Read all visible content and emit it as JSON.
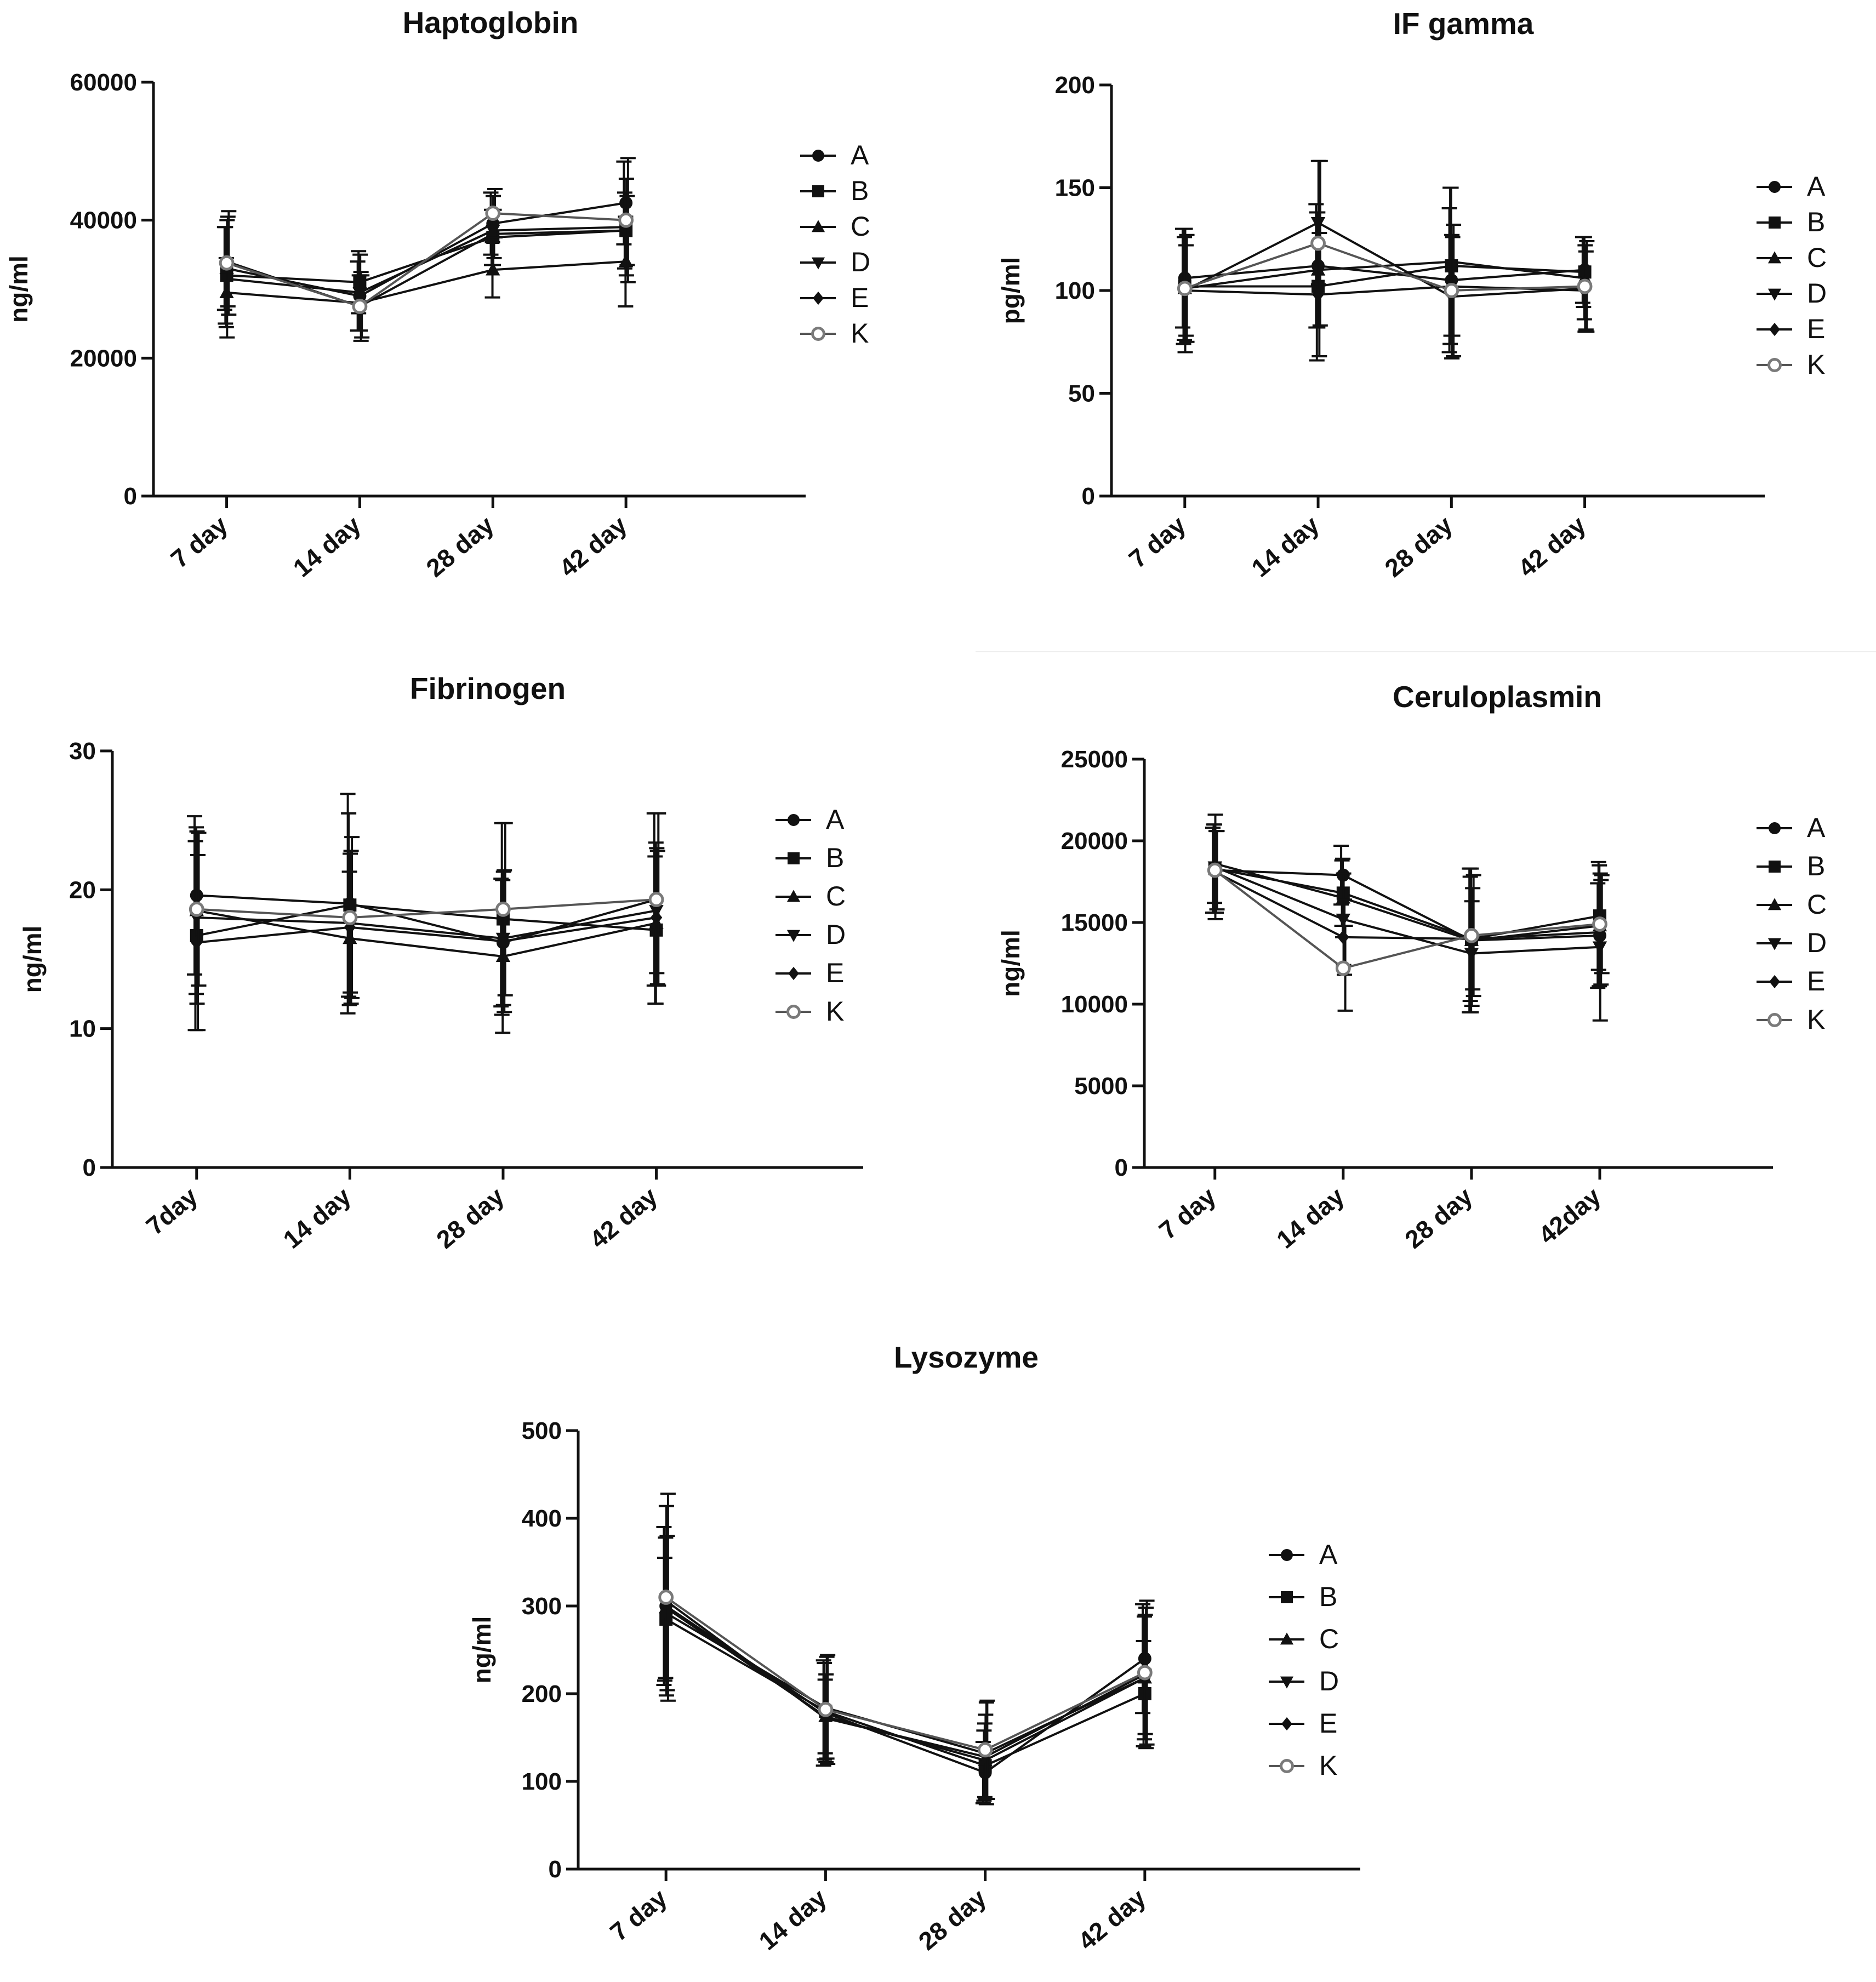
{
  "figure": {
    "description_none": ""
  },
  "chart_data": [
    {
      "type": "line",
      "title": "Haptoglobin",
      "xlabel": "",
      "ylabel": "ng/ml",
      "ylim": [
        0,
        60000
      ],
      "yticks": [
        0,
        20000,
        40000,
        60000
      ],
      "categories": [
        "7 day",
        "14 day",
        "28 day",
        "42 day"
      ],
      "series": [
        {
          "name": "A",
          "marker": "circle",
          "values": [
            33000,
            29000,
            39500,
            42500
          ],
          "errors": [
            6000,
            5000,
            4500,
            6000
          ]
        },
        {
          "name": "B",
          "marker": "square",
          "values": [
            32000,
            31000,
            37500,
            38500
          ],
          "errors": [
            7000,
            4500,
            4000,
            5500
          ]
        },
        {
          "name": "C",
          "marker": "triangle-up",
          "values": [
            29500,
            28000,
            32800,
            34000
          ],
          "errors": [
            5000,
            4000,
            4000,
            6500
          ]
        },
        {
          "name": "D",
          "marker": "triangle-down",
          "values": [
            31500,
            29500,
            38500,
            39000
          ],
          "errors": [
            8500,
            5500,
            5000,
            7000
          ]
        },
        {
          "name": "E",
          "marker": "diamond",
          "values": [
            34000,
            27500,
            38000,
            38500
          ],
          "errors": [
            6500,
            5000,
            3500,
            5000
          ]
        },
        {
          "name": "K",
          "marker": "open-circle",
          "values": [
            33800,
            27500,
            41000,
            40000
          ],
          "errors": [
            7500,
            4500,
            3500,
            9000
          ]
        }
      ]
    },
    {
      "type": "line",
      "title": "IF gamma",
      "xlabel": "",
      "ylabel": "pg/ml",
      "ylim": [
        0,
        200
      ],
      "yticks": [
        0,
        50,
        100,
        150,
        200
      ],
      "categories": [
        "7 day",
        "14 day",
        "28 day",
        "42 day"
      ],
      "series": [
        {
          "name": "A",
          "marker": "circle",
          "values": [
            106,
            112,
            105,
            110
          ],
          "errors": [
            24,
            30,
            35,
            16
          ]
        },
        {
          "name": "B",
          "marker": "square",
          "values": [
            102,
            102,
            112,
            109
          ],
          "errors": [
            28,
            36,
            38,
            17
          ]
        },
        {
          "name": "C",
          "marker": "triangle-up",
          "values": [
            101,
            110,
            114,
            106
          ],
          "errors": [
            25,
            28,
            36,
            20
          ]
        },
        {
          "name": "D",
          "marker": "triangle-down",
          "values": [
            100,
            133,
            97,
            101
          ],
          "errors": [
            30,
            30,
            30,
            21
          ]
        },
        {
          "name": "E",
          "marker": "diamond",
          "values": [
            100,
            98,
            102,
            100
          ],
          "errors": [
            22,
            30,
            24,
            19
          ]
        },
        {
          "name": "K",
          "marker": "open-circle",
          "values": [
            101,
            123,
            100,
            102
          ],
          "errors": [
            26,
            40,
            32,
            22
          ]
        }
      ]
    },
    {
      "type": "line",
      "title": "Fibrinogen",
      "xlabel": "",
      "ylabel": "ng/ml",
      "ylim": [
        0,
        30
      ],
      "yticks": [
        0,
        10,
        20,
        30
      ],
      "categories": [
        "7day",
        "14 day",
        "28 day",
        "42 day"
      ],
      "series": [
        {
          "name": "A",
          "marker": "circle",
          "values": [
            19.6,
            19.0,
            16.2,
            19.3
          ],
          "errors": [
            5.7,
            7.9,
            4.6,
            6.2
          ]
        },
        {
          "name": "B",
          "marker": "square",
          "values": [
            16.7,
            18.9,
            17.9,
            17.1
          ],
          "errors": [
            6.8,
            6.6,
            6.9,
            5.3
          ]
        },
        {
          "name": "C",
          "marker": "triangle-up",
          "values": [
            18.5,
            16.5,
            15.2,
            17.6
          ],
          "errors": [
            6.0,
            4.8,
            5.5,
            5.8
          ]
        },
        {
          "name": "D",
          "marker": "triangle-down",
          "values": [
            18.0,
            17.6,
            16.5,
            18.5
          ],
          "errors": [
            6.2,
            5.0,
            4.8,
            4.5
          ]
        },
        {
          "name": "E",
          "marker": "diamond",
          "values": [
            16.2,
            17.3,
            16.3,
            18.0
          ],
          "errors": [
            6.3,
            5.5,
            5.1,
            4.8
          ]
        },
        {
          "name": "K",
          "marker": "open-circle",
          "values": [
            18.6,
            18.0,
            18.6,
            19.3
          ],
          "errors": [
            5.5,
            5.8,
            6.2,
            6.2
          ]
        }
      ]
    },
    {
      "type": "line",
      "title": "Ceruloplasmin",
      "xlabel": "",
      "ylabel": "ng/ml",
      "ylim": [
        0,
        25000
      ],
      "yticks": [
        0,
        5000,
        10000,
        15000,
        20000,
        25000
      ],
      "categories": [
        "7 day",
        "14 day",
        "28 day",
        "42day"
      ],
      "series": [
        {
          "name": "A",
          "marker": "circle",
          "values": [
            18200,
            17900,
            13900,
            14200
          ],
          "errors": [
            2600,
            1800,
            4400,
            3200
          ]
        },
        {
          "name": "B",
          "marker": "square",
          "values": [
            18300,
            16800,
            14000,
            15400
          ],
          "errors": [
            2700,
            2000,
            3800,
            3300
          ]
        },
        {
          "name": "C",
          "marker": "triangle-up",
          "values": [
            18600,
            16500,
            13900,
            14800
          ],
          "errors": [
            2400,
            2400,
            4400,
            3700
          ]
        },
        {
          "name": "D",
          "marker": "triangle-down",
          "values": [
            18400,
            15200,
            13100,
            13500
          ],
          "errors": [
            3200,
            2800,
            3200,
            4500
          ]
        },
        {
          "name": "E",
          "marker": "diamond",
          "values": [
            18100,
            14100,
            14000,
            14400
          ],
          "errors": [
            2500,
            2300,
            3100,
            3200
          ]
        },
        {
          "name": "K",
          "marker": "open-circle",
          "values": [
            18200,
            12200,
            14200,
            14900
          ],
          "errors": [
            2400,
            2600,
            3700,
            3000
          ]
        }
      ]
    },
    {
      "type": "line",
      "title": "Lysozyme",
      "xlabel": "",
      "ylabel": "ng/ml",
      "ylim": [
        0,
        500
      ],
      "yticks": [
        0,
        100,
        200,
        300,
        400,
        500
      ],
      "categories": [
        "7 day",
        "14 day",
        "28 day",
        "42 day"
      ],
      "series": [
        {
          "name": "A",
          "marker": "circle",
          "values": [
            300,
            178,
            110,
            240
          ],
          "errors": [
            90,
            60,
            35,
            62
          ]
        },
        {
          "name": "B",
          "marker": "square",
          "values": [
            285,
            180,
            118,
            200
          ],
          "errors": [
            70,
            55,
            40,
            60
          ]
        },
        {
          "name": "C",
          "marker": "triangle-up",
          "values": [
            298,
            174,
            124,
            218
          ],
          "errors": [
            80,
            42,
            42,
            70
          ]
        },
        {
          "name": "D",
          "marker": "triangle-down",
          "values": [
            306,
            172,
            128,
            222
          ],
          "errors": [
            108,
            50,
            48,
            68
          ]
        },
        {
          "name": "E",
          "marker": "diamond",
          "values": [
            292,
            184,
            132,
            218
          ],
          "errors": [
            88,
            58,
            58,
            80
          ]
        },
        {
          "name": "K",
          "marker": "open-circle",
          "values": [
            310,
            182,
            136,
            224
          ],
          "errors": [
            118,
            62,
            56,
            82
          ]
        }
      ]
    }
  ]
}
